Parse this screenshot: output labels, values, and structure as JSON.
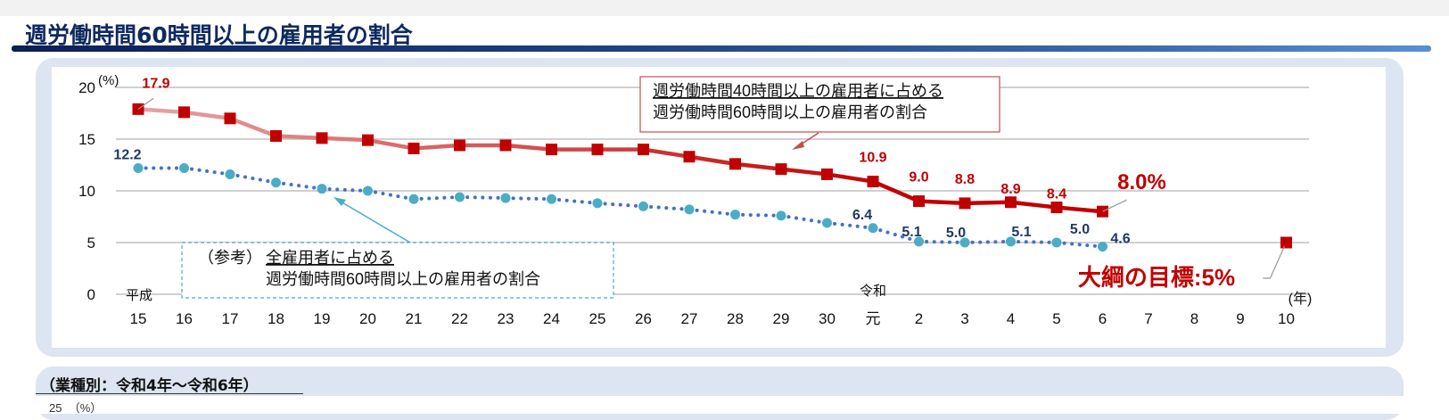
{
  "page": {
    "title": "週労働時間60時間以上の雇用者の割合"
  },
  "chart_data": {
    "type": "line",
    "title": "週労働時間60時間以上の雇用者の割合",
    "ylabel": "(%)",
    "xlabel": "(年)",
    "ylim": [
      0,
      20
    ],
    "yticks": [
      "0",
      "5",
      "10",
      "15",
      "20"
    ],
    "era_labels": {
      "heisei": "平成",
      "reiwa": "令和"
    },
    "categories": [
      "15",
      "16",
      "17",
      "18",
      "19",
      "20",
      "21",
      "22",
      "23",
      "24",
      "25",
      "26",
      "27",
      "28",
      "29",
      "30",
      "元",
      "2",
      "3",
      "4",
      "5",
      "6",
      "7",
      "8",
      "9",
      "10"
    ],
    "grid": true,
    "series": [
      {
        "name": "週労働時間40時間以上の雇用者に占める週労働時間60時間以上の雇用者の割合",
        "color": "#c00000",
        "values": [
          17.9,
          17.6,
          17.0,
          15.3,
          15.1,
          14.9,
          14.1,
          14.4,
          14.4,
          14.0,
          14.0,
          14.0,
          13.3,
          12.6,
          12.1,
          11.6,
          10.9,
          9.0,
          8.8,
          8.9,
          8.4,
          8.0,
          null,
          null,
          null,
          5.0
        ],
        "labeled_points": {
          "15": "17.9",
          "元": "10.9",
          "2": "9.0",
          "3": "8.8",
          "4": "8.9",
          "5": "8.4",
          "6": "8.0%"
        }
      },
      {
        "name": "（参考）全雇用者に占める週労働時間60時間以上の雇用者の割合",
        "color": "#4bacc6",
        "values": [
          12.2,
          12.2,
          11.6,
          10.8,
          10.2,
          10.0,
          9.2,
          9.4,
          9.3,
          9.2,
          8.8,
          8.5,
          8.2,
          7.7,
          7.6,
          6.9,
          6.4,
          5.1,
          5.0,
          5.1,
          5.0,
          4.6,
          null,
          null,
          null,
          null
        ],
        "labeled_points": {
          "15": "12.2",
          "元": "6.4",
          "2": "5.1",
          "3": "5.0",
          "4": "5.1",
          "5": "5.0",
          "6": "4.6"
        }
      }
    ],
    "annotations": {
      "red_legend_line1": "週労働時間40時間以上の雇用者に占める",
      "red_legend_line2": "週労働時間60時間以上の雇用者の割合",
      "blue_legend_prefix": "（参考）",
      "blue_legend_line1": "全雇用者に占める",
      "blue_legend_line2": "週労働時間60時間以上の雇用者の割合",
      "target": "大綱の目標:5%"
    }
  },
  "section2": {
    "title": "（業種別：令和4年～令和6年）",
    "y_top": "25",
    "y_unit": "（%）"
  }
}
